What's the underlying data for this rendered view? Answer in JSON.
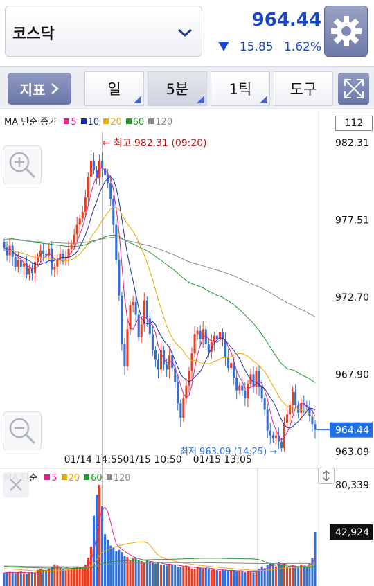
{
  "header": {
    "market_name": "코스닥",
    "price": "964.44",
    "change": "15.85",
    "change_pct": "1.62%",
    "change_color": "#1747c8"
  },
  "toolbar": {
    "indicator_label": "지표",
    "tabs": [
      {
        "label": "일",
        "active": false
      },
      {
        "label": "5분",
        "active": true
      },
      {
        "label": "1틱",
        "active": false
      },
      {
        "label": "도구",
        "active": false
      }
    ]
  },
  "price_legend": {
    "title": "MA 단순 종가",
    "items": [
      {
        "label": "5",
        "color": "#e0218a"
      },
      {
        "label": "10",
        "color": "#1b2fa8"
      },
      {
        "label": "20",
        "color": "#e8a800"
      },
      {
        "label": "60",
        "color": "#1e9a2c"
      },
      {
        "label": "120",
        "color": "#888888"
      }
    ]
  },
  "volume_legend": {
    "title": "MA 단순",
    "items": [
      {
        "label": "5",
        "color": "#e0218a"
      },
      {
        "label": "20",
        "color": "#e8a800"
      },
      {
        "label": "60",
        "color": "#1e9a2c"
      },
      {
        "label": "120",
        "color": "#888888"
      }
    ]
  },
  "candle_count_label": "112",
  "colors": {
    "up": "#f03a1e",
    "down": "#2f6fd6",
    "highlight_blue": "#1f6fe5"
  },
  "chart_data": [
    {
      "type": "candlestick",
      "y_ticks": [
        "982.31",
        "977.51",
        "972.70",
        "967.90",
        "963.09"
      ],
      "ylim": [
        963.09,
        982.31
      ],
      "current_value": 964.44,
      "current_label": "964.44",
      "annotations": {
        "high": {
          "text": "← 최고 982.31 (09:20)",
          "value": 982.31
        },
        "low": {
          "text": "최저 963.09 (14:25) →",
          "value": 963.09
        }
      },
      "x_ticks": [
        "01/14 14:55",
        "01/15 10:50",
        "01/15 13:05"
      ],
      "close": [
        975.8,
        975.3,
        975.9,
        975.2,
        974.6,
        975.0,
        974.6,
        974.8,
        974.1,
        974.5,
        974.2,
        974.9,
        975.2,
        975.6,
        975.4,
        975.3,
        975.7,
        974.4,
        974.6,
        975.0,
        975.4,
        975.1,
        975.2,
        975.7,
        976.0,
        976.6,
        977.2,
        977.6,
        978.0,
        978.9,
        980.2,
        981.2,
        980.6,
        980.1,
        981.2,
        980.7,
        980.3,
        979.8,
        978.8,
        977.2,
        975.0,
        972.8,
        969.8,
        968.4,
        970.7,
        972.2,
        972.4,
        971.6,
        970.2,
        971.0,
        972.5,
        971.4,
        970.4,
        969.4,
        968.8,
        968.2,
        969.4,
        968.5,
        968.2,
        969.1,
        968.3,
        967.4,
        966.1,
        965.2,
        966.4,
        967.2,
        968.1,
        969.2,
        970.4,
        970.6,
        970.1,
        970.7,
        969.8,
        969.3,
        969.9,
        970.3,
        970.1,
        970.5,
        970.1,
        969.0,
        968.3,
        968.6,
        967.7,
        966.9,
        967.2,
        966.9,
        966.4,
        967.3,
        967.9,
        967.1,
        968.1,
        967.1,
        966.4,
        965.7,
        964.4,
        964.1,
        963.9,
        964.1,
        963.7,
        963.3,
        964.9,
        965.4,
        966.0,
        966.8,
        966.0,
        965.5,
        966.1,
        966.0,
        965.9,
        965.3,
        964.8,
        964.44
      ],
      "volume_ymax": 80339,
      "volume_current": 42924,
      "volume_labels": [
        "80,339",
        "42,924"
      ],
      "volume": [
        10500,
        10800,
        11200,
        10900,
        10300,
        10700,
        11500,
        10200,
        9800,
        10600,
        11000,
        10400,
        12800,
        13600,
        12900,
        12100,
        13800,
        15000,
        17200,
        16300,
        14800,
        13600,
        12900,
        13400,
        14100,
        14700,
        15600,
        14900,
        14100,
        16800,
        22500,
        31200,
        55800,
        72500,
        80339,
        63400,
        41200,
        36800,
        32100,
        30400,
        27600,
        28800,
        26900,
        24200,
        23100,
        20800,
        22600,
        22100,
        20400,
        19800,
        18600,
        20200,
        19300,
        18400,
        17900,
        18700,
        17100,
        16900,
        16300,
        17600,
        17000,
        16500,
        15300,
        14900,
        15600,
        16200,
        15100,
        13900,
        13300,
        15400,
        14600,
        13800,
        14400,
        13600,
        12900,
        13400,
        12600,
        12100,
        13000,
        12400,
        11900,
        12700,
        12300,
        11600,
        12100,
        11700,
        10900,
        11800,
        11400,
        10800,
        11200,
        13600,
        15500,
        14100,
        16900,
        18400,
        17700,
        15600,
        19200,
        16800,
        17900,
        15200,
        14300,
        16400,
        15800,
        14600,
        17100,
        16200,
        15100,
        17900,
        22400,
        42924
      ]
    }
  ]
}
